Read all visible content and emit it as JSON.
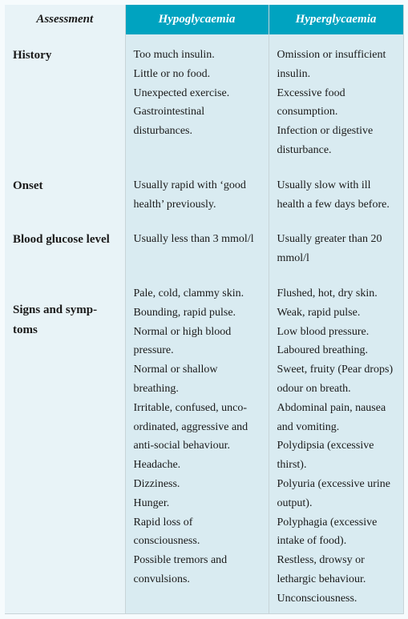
{
  "colors": {
    "header_bg": "#00a3c0",
    "header_text": "#ffffff",
    "label_bg": "#e8f3f7",
    "cell_bg": "#d9ebf1",
    "border": "#c8d4d8",
    "text": "#1a1a1a"
  },
  "columns": {
    "assessment": "Assessment",
    "hypo": "Hypoglycaemia",
    "hyper": "Hyperglycaemia"
  },
  "rows": {
    "history": {
      "label": "History",
      "hypo": [
        "Too much insulin.",
        "Little or no food.",
        "Unexpected exercise.",
        "Gastrointestinal disturbances."
      ],
      "hyper": [
        "Omission or insufficient insulin.",
        "Excessive food consumption.",
        "Infection or digestive disturbance."
      ]
    },
    "onset": {
      "label": "Onset",
      "hypo": [
        "Usually rapid with ‘good health’ previously."
      ],
      "hyper": [
        "Usually slow with ill health a few days before."
      ]
    },
    "bgl": {
      "label": "Blood glucose level",
      "hypo": [
        "Usually less than 3 mmol/l"
      ],
      "hyper": [
        "Usually greater than 20 mmol/l"
      ]
    },
    "signs": {
      "label": "Signs and symp­toms",
      "hypo": [
        "Pale, cold, clammy skin.",
        "Bounding, rapid pulse.",
        "Normal or high blood pressure.",
        "Normal or shallow breathing.",
        "Irritable, confused, unco-ordinated, aggressive and anti-social behaviour.",
        "Headache.",
        "Dizziness.",
        "Hunger.",
        "Rapid loss of consciousness.",
        "Possible tremors and convulsions."
      ],
      "hyper": [
        "Flushed, hot, dry skin.",
        "Weak, rapid pulse.",
        "Low blood pressure.",
        "Laboured breathing.",
        "Sweet, fruity (Pear drops) odour on breath.",
        "Abdominal pain, nausea and vomiting.",
        "Polydipsia (excessive thirst).",
        "Polyuria (excessive urine output).",
        "Polyphagia (excessive intake of food).",
        "Restless, drowsy or lethargic behaviour.",
        "Unconsciousness."
      ]
    }
  }
}
